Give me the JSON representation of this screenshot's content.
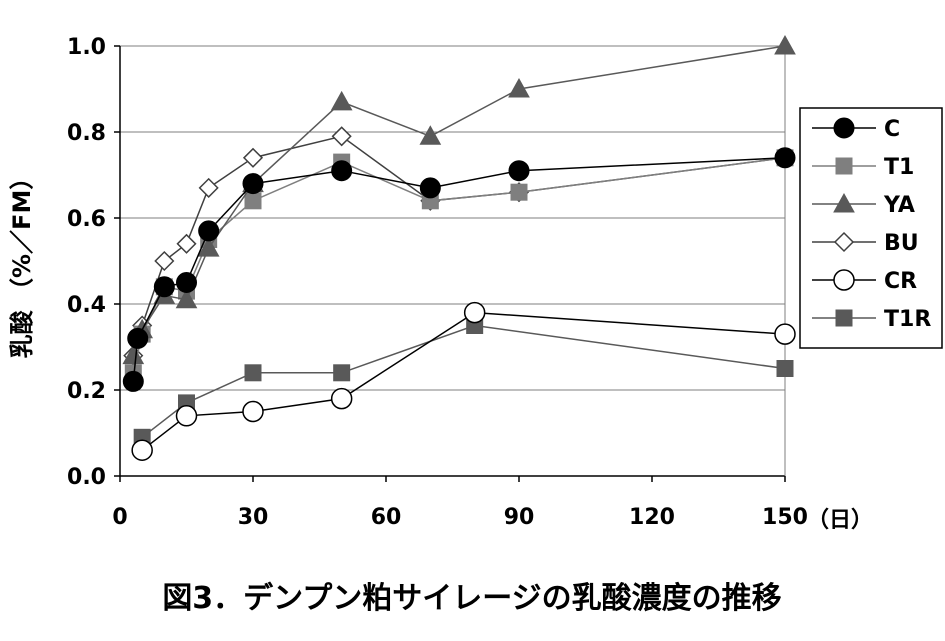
{
  "chart_data": {
    "type": "line",
    "caption": "図3．デンプン粕サイレージの乳酸濃度の推移",
    "ylabel": "乳酸 （%／FM）",
    "x_unit": "（日）",
    "xlim": [
      0,
      150
    ],
    "ylim": [
      0,
      1.0
    ],
    "x_ticks": [
      0,
      30,
      60,
      90,
      120,
      150
    ],
    "y_ticks": [
      0.0,
      0.2,
      0.4,
      0.6,
      0.8,
      1.0
    ],
    "y_tick_labels": [
      "0.0",
      "0.2",
      "0.4",
      "0.6",
      "0.8",
      "1.0"
    ],
    "grid": "horizontal",
    "legend_position": "right",
    "series": [
      {
        "name": "C",
        "marker": "circle-filled",
        "color": "#000000",
        "x": [
          3,
          4,
          10,
          15,
          20,
          30,
          50,
          70,
          90,
          150
        ],
        "y": [
          0.22,
          0.32,
          0.44,
          0.45,
          0.57,
          0.68,
          0.71,
          0.67,
          0.71,
          0.74
        ]
      },
      {
        "name": "T1",
        "marker": "square-filled",
        "color": "#7f7f7f",
        "x": [
          3,
          5,
          10,
          15,
          20,
          30,
          50,
          70,
          90,
          150
        ],
        "y": [
          0.24,
          0.33,
          0.44,
          0.43,
          0.55,
          0.64,
          0.73,
          0.64,
          0.66,
          0.74
        ]
      },
      {
        "name": "YA",
        "marker": "triangle-filled",
        "color": "#595959",
        "x": [
          3,
          5,
          10,
          15,
          20,
          30,
          50,
          70,
          90,
          150
        ],
        "y": [
          0.28,
          0.34,
          0.42,
          0.41,
          0.53,
          0.68,
          0.87,
          0.79,
          0.9,
          1.0
        ]
      },
      {
        "name": "BU",
        "marker": "diamond-open",
        "color": "#404040",
        "x": [
          3,
          5,
          10,
          15,
          20,
          30,
          50,
          70,
          90,
          150
        ],
        "y": [
          0.28,
          0.35,
          0.5,
          0.54,
          0.67,
          0.74,
          0.79,
          0.64,
          0.66,
          0.74
        ]
      },
      {
        "name": "CR",
        "marker": "circle-open",
        "color": "#000000",
        "x": [
          5,
          15,
          30,
          50,
          80,
          150
        ],
        "y": [
          0.06,
          0.14,
          0.15,
          0.18,
          0.38,
          0.33
        ]
      },
      {
        "name": "T1R",
        "marker": "square-filled",
        "color": "#595959",
        "x": [
          5,
          15,
          30,
          50,
          80,
          150
        ],
        "y": [
          0.09,
          0.17,
          0.24,
          0.24,
          0.35,
          0.25
        ]
      }
    ]
  }
}
